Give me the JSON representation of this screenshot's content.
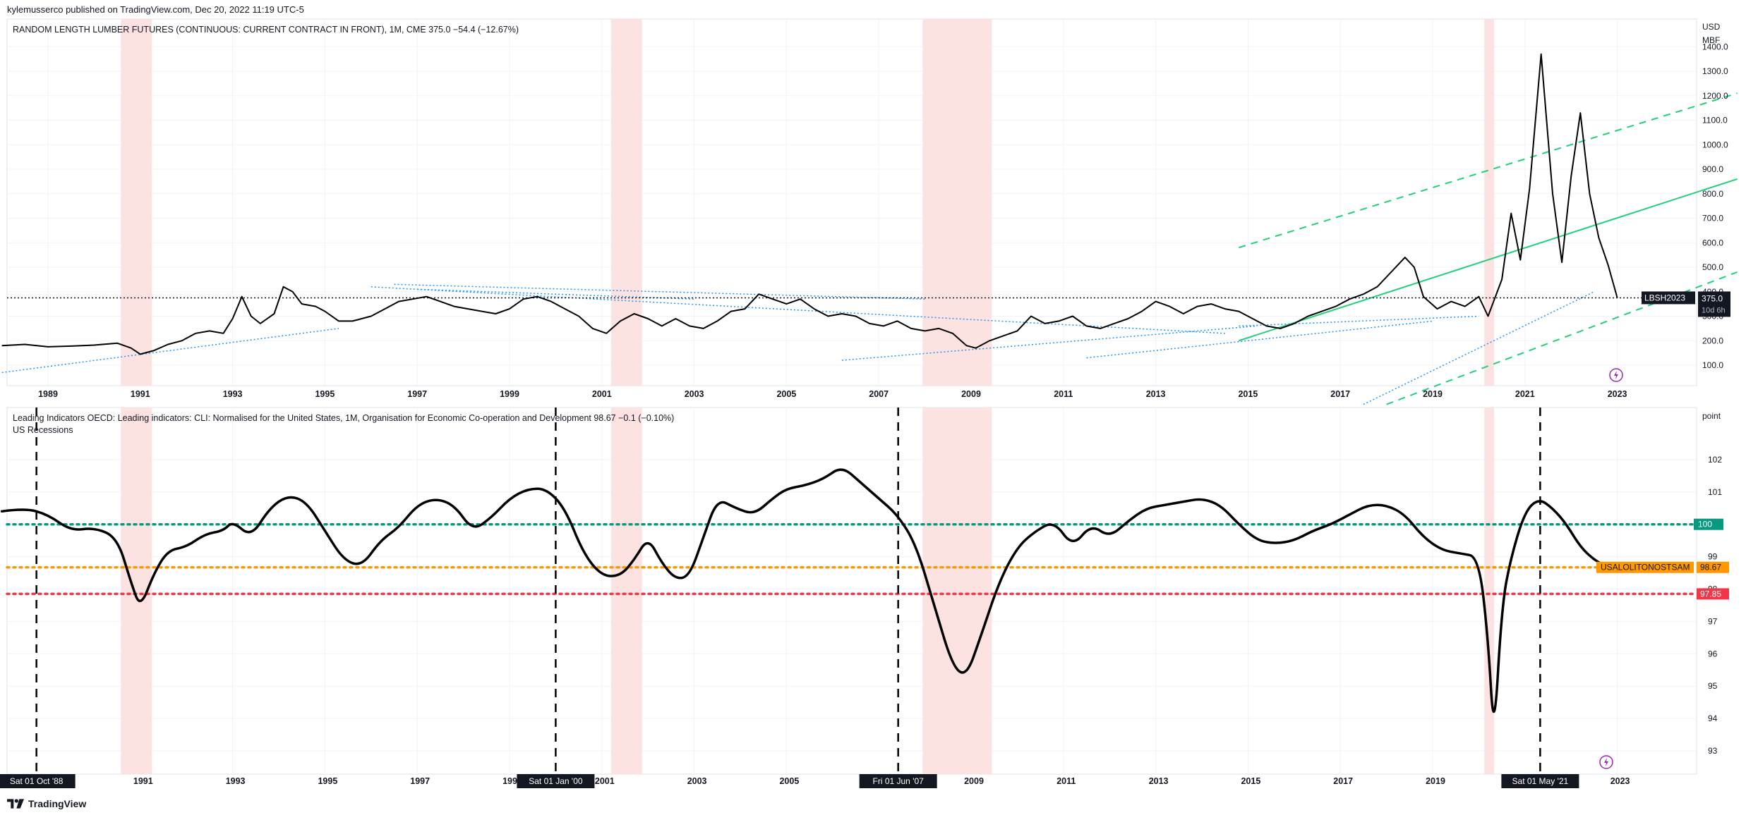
{
  "header": {
    "publisher_line": "kylemusserco published on TradingView.com, Dec 20, 2022 11:19 UTC-5"
  },
  "top_pane": {
    "legend": "RANDOM LENGTH LUMBER FUTURES (CONTINUOUS: CURRENT CONTRACT IN FRONT), 1M, CME  375.0  −54.4 (−12.67%)",
    "currency": "USD",
    "unit": "MBF",
    "price_label": "375.0",
    "countdown_label": "10d 6h",
    "symbol_tag": "LBSH2023",
    "y_ticks": [
      "100.0",
      "200.0",
      "300.0",
      "400.0",
      "500.0",
      "600.0",
      "700.0",
      "800.0",
      "900.0",
      "1000.0",
      "1100.0",
      "1200.0",
      "1300.0",
      "1400.0"
    ]
  },
  "bottom_pane": {
    "legend": "Leading Indicators OECD: Leading indicators: CLI: Normalised for the United States, 1M, Organisation for Economic Co-operation and Development  98.67  −0.1 (−0.10%)",
    "legend2": "US Recessions",
    "unit": "point",
    "y_ticks": [
      "93",
      "94",
      "95",
      "96",
      "97",
      "98",
      "99",
      "100",
      "101",
      "102"
    ],
    "label_100": "100",
    "label_cli_name": "USALOLITONOSTSAM",
    "label_cli_value": "98.67",
    "label_red": "97.85"
  },
  "x_axis": {
    "top_years": [
      "1989",
      "1991",
      "1993",
      "1995",
      "1997",
      "1999",
      "2001",
      "2003",
      "2005",
      "2007",
      "2009",
      "2011",
      "2013",
      "2015",
      "2017",
      "2019",
      "2021",
      "2023"
    ],
    "bottom_years": [
      "1991",
      "1993",
      "1995",
      "1997",
      "1999",
      "2001",
      "2003",
      "2005",
      "2009",
      "2011",
      "2013",
      "2015",
      "2017",
      "2019",
      "2023"
    ],
    "markers": [
      "Sat 01 Oct '88",
      "Sat 01 Jan '00",
      "Fri 01 Jun '07",
      "Sat 01 May '21"
    ]
  },
  "footer": {
    "brand": "TradingView"
  },
  "colors": {
    "price_line": "#000000",
    "recession": "#fde2e2",
    "green_channel": "#22d07a",
    "blue_trend": "#2196f3",
    "teal_level": "#089981",
    "orange_level": "#ff9800",
    "red_level": "#f23645",
    "cli_line": "#000000"
  },
  "chart_data": [
    {
      "type": "line",
      "title": "RANDOM LENGTH LUMBER FUTURES (CONTINUOUS: CURRENT CONTRACT IN FRONT), 1M, CME",
      "ylabel": "USD MBF",
      "ylim": [
        30,
        1420
      ],
      "last_value": 375.0,
      "recessions": [
        [
          1990.58,
          1991.25
        ],
        [
          2001.2,
          2001.87
        ],
        [
          2007.95,
          2009.45
        ],
        [
          2020.12,
          2020.33
        ]
      ],
      "series": [
        {
          "values": [
            [
              1988.0,
              180
            ],
            [
              1988.5,
              185
            ],
            [
              1989.0,
              175
            ],
            [
              1989.5,
              178
            ],
            [
              1990.0,
              182
            ],
            [
              1990.5,
              190
            ],
            [
              1990.8,
              170
            ],
            [
              1991.0,
              145
            ],
            [
              1991.3,
              160
            ],
            [
              1991.6,
              185
            ],
            [
              1991.9,
              200
            ],
            [
              1992.2,
              230
            ],
            [
              1992.5,
              240
            ],
            [
              1992.8,
              230
            ],
            [
              1993.0,
              290
            ],
            [
              1993.2,
              380
            ],
            [
              1993.4,
              300
            ],
            [
              1993.6,
              270
            ],
            [
              1993.9,
              310
            ],
            [
              1994.1,
              420
            ],
            [
              1994.3,
              400
            ],
            [
              1994.5,
              350
            ],
            [
              1994.8,
              340
            ],
            [
              1995.0,
              320
            ],
            [
              1995.3,
              280
            ],
            [
              1995.6,
              280
            ],
            [
              1996.0,
              300
            ],
            [
              1996.3,
              330
            ],
            [
              1996.6,
              360
            ],
            [
              1996.9,
              370
            ],
            [
              1997.2,
              380
            ],
            [
              1997.5,
              360
            ],
            [
              1997.8,
              340
            ],
            [
              1998.1,
              330
            ],
            [
              1998.4,
              320
            ],
            [
              1998.7,
              310
            ],
            [
              1999.0,
              330
            ],
            [
              1999.3,
              370
            ],
            [
              1999.6,
              380
            ],
            [
              1999.9,
              360
            ],
            [
              2000.2,
              330
            ],
            [
              2000.5,
              300
            ],
            [
              2000.8,
              250
            ],
            [
              2001.1,
              230
            ],
            [
              2001.4,
              280
            ],
            [
              2001.7,
              310
            ],
            [
              2002.0,
              290
            ],
            [
              2002.3,
              260
            ],
            [
              2002.6,
              290
            ],
            [
              2002.9,
              260
            ],
            [
              2003.2,
              250
            ],
            [
              2003.5,
              280
            ],
            [
              2003.8,
              320
            ],
            [
              2004.1,
              330
            ],
            [
              2004.4,
              390
            ],
            [
              2004.7,
              370
            ],
            [
              2005.0,
              350
            ],
            [
              2005.3,
              370
            ],
            [
              2005.6,
              330
            ],
            [
              2005.9,
              300
            ],
            [
              2006.2,
              310
            ],
            [
              2006.5,
              300
            ],
            [
              2006.8,
              270
            ],
            [
              2007.1,
              260
            ],
            [
              2007.4,
              280
            ],
            [
              2007.7,
              250
            ],
            [
              2008.0,
              240
            ],
            [
              2008.3,
              250
            ],
            [
              2008.6,
              230
            ],
            [
              2008.9,
              180
            ],
            [
              2009.1,
              170
            ],
            [
              2009.4,
              200
            ],
            [
              2009.7,
              220
            ],
            [
              2010.0,
              240
            ],
            [
              2010.3,
              300
            ],
            [
              2010.6,
              270
            ],
            [
              2010.9,
              280
            ],
            [
              2011.2,
              300
            ],
            [
              2011.5,
              260
            ],
            [
              2011.8,
              250
            ],
            [
              2012.1,
              270
            ],
            [
              2012.4,
              290
            ],
            [
              2012.7,
              320
            ],
            [
              2013.0,
              360
            ],
            [
              2013.3,
              340
            ],
            [
              2013.6,
              310
            ],
            [
              2013.9,
              340
            ],
            [
              2014.2,
              350
            ],
            [
              2014.5,
              330
            ],
            [
              2014.8,
              320
            ],
            [
              2015.1,
              290
            ],
            [
              2015.4,
              260
            ],
            [
              2015.7,
              250
            ],
            [
              2016.0,
              270
            ],
            [
              2016.3,
              300
            ],
            [
              2016.6,
              320
            ],
            [
              2016.9,
              340
            ],
            [
              2017.2,
              370
            ],
            [
              2017.5,
              390
            ],
            [
              2017.8,
              420
            ],
            [
              2018.1,
              480
            ],
            [
              2018.4,
              540
            ],
            [
              2018.6,
              500
            ],
            [
              2018.8,
              380
            ],
            [
              2019.1,
              330
            ],
            [
              2019.4,
              360
            ],
            [
              2019.7,
              340
            ],
            [
              2020.0,
              380
            ],
            [
              2020.2,
              300
            ],
            [
              2020.5,
              450
            ],
            [
              2020.7,
              720
            ],
            [
              2020.9,
              530
            ],
            [
              2021.1,
              820
            ],
            [
              2021.35,
              1370
            ],
            [
              2021.6,
              800
            ],
            [
              2021.8,
              520
            ],
            [
              2022.0,
              870
            ],
            [
              2022.2,
              1130
            ],
            [
              2022.4,
              800
            ],
            [
              2022.6,
              620
            ],
            [
              2022.8,
              510
            ],
            [
              2023.0,
              375
            ]
          ]
        }
      ]
    },
    {
      "type": "line",
      "title": "Leading Indicators OECD: Leading indicators: CLI: Normalised for the United States, 1M, Organisation for Economic Co-operation and Development",
      "ylabel": "point",
      "ylim": [
        92.5,
        102.7
      ],
      "last_value": 98.67,
      "levels": [
        100,
        98.67,
        97.85
      ],
      "series": [
        {
          "values": [
            [
              1988.0,
              100.4
            ],
            [
              1988.5,
              100.5
            ],
            [
              1989.0,
              100.3
            ],
            [
              1989.5,
              99.8
            ],
            [
              1990.0,
              99.9
            ],
            [
              1990.5,
              99.6
            ],
            [
              1990.8,
              98.2
            ],
            [
              1991.0,
              97.4
            ],
            [
              1991.3,
              98.5
            ],
            [
              1991.6,
              99.2
            ],
            [
              1992.0,
              99.3
            ],
            [
              1992.4,
              99.7
            ],
            [
              1992.8,
              99.8
            ],
            [
              1993.0,
              100.1
            ],
            [
              1993.4,
              99.6
            ],
            [
              1993.8,
              100.5
            ],
            [
              1994.2,
              100.9
            ],
            [
              1994.6,
              100.7
            ],
            [
              1995.0,
              99.8
            ],
            [
              1995.4,
              98.9
            ],
            [
              1995.8,
              98.7
            ],
            [
              1996.2,
              99.5
            ],
            [
              1996.6,
              99.9
            ],
            [
              1997.0,
              100.6
            ],
            [
              1997.4,
              100.8
            ],
            [
              1997.8,
              100.6
            ],
            [
              1998.2,
              99.8
            ],
            [
              1998.6,
              100.2
            ],
            [
              1999.0,
              100.8
            ],
            [
              1999.4,
              101.1
            ],
            [
              1999.8,
              101.1
            ],
            [
              2000.2,
              100.5
            ],
            [
              2000.6,
              99.1
            ],
            [
              2001.0,
              98.4
            ],
            [
              2001.4,
              98.4
            ],
            [
              2001.7,
              98.9
            ],
            [
              2002.0,
              99.6
            ],
            [
              2002.3,
              98.8
            ],
            [
              2002.6,
              98.3
            ],
            [
              2002.9,
              98.4
            ],
            [
              2003.2,
              99.6
            ],
            [
              2003.5,
              100.8
            ],
            [
              2003.9,
              100.5
            ],
            [
              2004.3,
              100.3
            ],
            [
              2004.7,
              100.8
            ],
            [
              2005.0,
              101.1
            ],
            [
              2005.4,
              101.2
            ],
            [
              2005.8,
              101.4
            ],
            [
              2006.2,
              101.8
            ],
            [
              2006.6,
              101.3
            ],
            [
              2007.0,
              100.8
            ],
            [
              2007.4,
              100.3
            ],
            [
              2007.8,
              99.4
            ],
            [
              2008.2,
              97.5
            ],
            [
              2008.6,
              95.6
            ],
            [
              2008.9,
              95.3
            ],
            [
              2009.2,
              96.5
            ],
            [
              2009.6,
              98.2
            ],
            [
              2010.0,
              99.3
            ],
            [
              2010.4,
              99.8
            ],
            [
              2010.8,
              100.1
            ],
            [
              2011.2,
              99.3
            ],
            [
              2011.6,
              100.0
            ],
            [
              2012.0,
              99.6
            ],
            [
              2012.4,
              100.1
            ],
            [
              2012.8,
              100.5
            ],
            [
              2013.2,
              100.6
            ],
            [
              2013.6,
              100.7
            ],
            [
              2014.0,
              100.8
            ],
            [
              2014.4,
              100.6
            ],
            [
              2014.8,
              100.0
            ],
            [
              2015.2,
              99.5
            ],
            [
              2015.6,
              99.4
            ],
            [
              2016.0,
              99.5
            ],
            [
              2016.4,
              99.8
            ],
            [
              2016.8,
              100.0
            ],
            [
              2017.2,
              100.3
            ],
            [
              2017.6,
              100.6
            ],
            [
              2018.0,
              100.6
            ],
            [
              2018.4,
              100.3
            ],
            [
              2018.8,
              99.6
            ],
            [
              2019.2,
              99.2
            ],
            [
              2019.6,
              99.1
            ],
            [
              2020.0,
              99.0
            ],
            [
              2020.2,
              96.5
            ],
            [
              2020.33,
              93.3
            ],
            [
              2020.5,
              97.5
            ],
            [
              2020.7,
              99.0
            ],
            [
              2021.0,
              100.4
            ],
            [
              2021.3,
              100.8
            ],
            [
              2021.6,
              100.5
            ],
            [
              2021.9,
              100.0
            ],
            [
              2022.2,
              99.3
            ],
            [
              2022.5,
              98.9
            ],
            [
              2022.8,
              98.67
            ]
          ]
        }
      ]
    }
  ]
}
